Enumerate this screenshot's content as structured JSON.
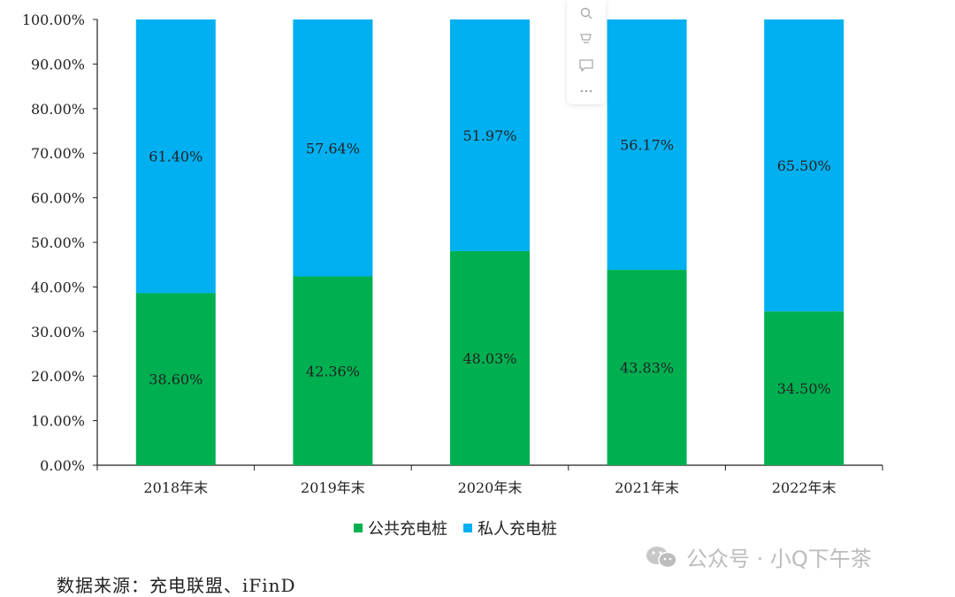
{
  "chart_data": {
    "type": "bar",
    "stacked": true,
    "categories": [
      "2018年末",
      "2019年末",
      "2020年末",
      "2021年末",
      "2022年末"
    ],
    "series": [
      {
        "name": "公共充电桩",
        "color": "#00b050",
        "values": [
          38.6,
          42.36,
          48.03,
          43.83,
          34.5
        ]
      },
      {
        "name": "私人充电桩",
        "color": "#00b0f0",
        "values": [
          61.4,
          57.64,
          51.97,
          56.17,
          65.5
        ]
      }
    ],
    "data_labels": {
      "公共充电桩": [
        "38.60%",
        "42.36%",
        "48.03%",
        "43.83%",
        "34.50%"
      ],
      "私人充电桩": [
        "61.40%",
        "57.64%",
        "51.97%",
        "56.17%",
        "65.50%"
      ]
    },
    "yticks": [
      "0.00%",
      "10.00%",
      "20.00%",
      "30.00%",
      "40.00%",
      "50.00%",
      "60.00%",
      "70.00%",
      "80.00%",
      "90.00%",
      "100.00%"
    ],
    "ylim": [
      0,
      100
    ],
    "grid": false,
    "legend_position": "bottom"
  },
  "legend": [
    {
      "label": "公共充电桩",
      "color": "#00b050"
    },
    {
      "label": "私人充电桩",
      "color": "#00b0f0"
    }
  ],
  "source_note": "数据来源：充电联盟、iFinD",
  "watermark": "公众号 · 小Q下午茶",
  "toolbar_icons": [
    "search-icon",
    "cart-icon",
    "comment-icon",
    "more-icon"
  ]
}
